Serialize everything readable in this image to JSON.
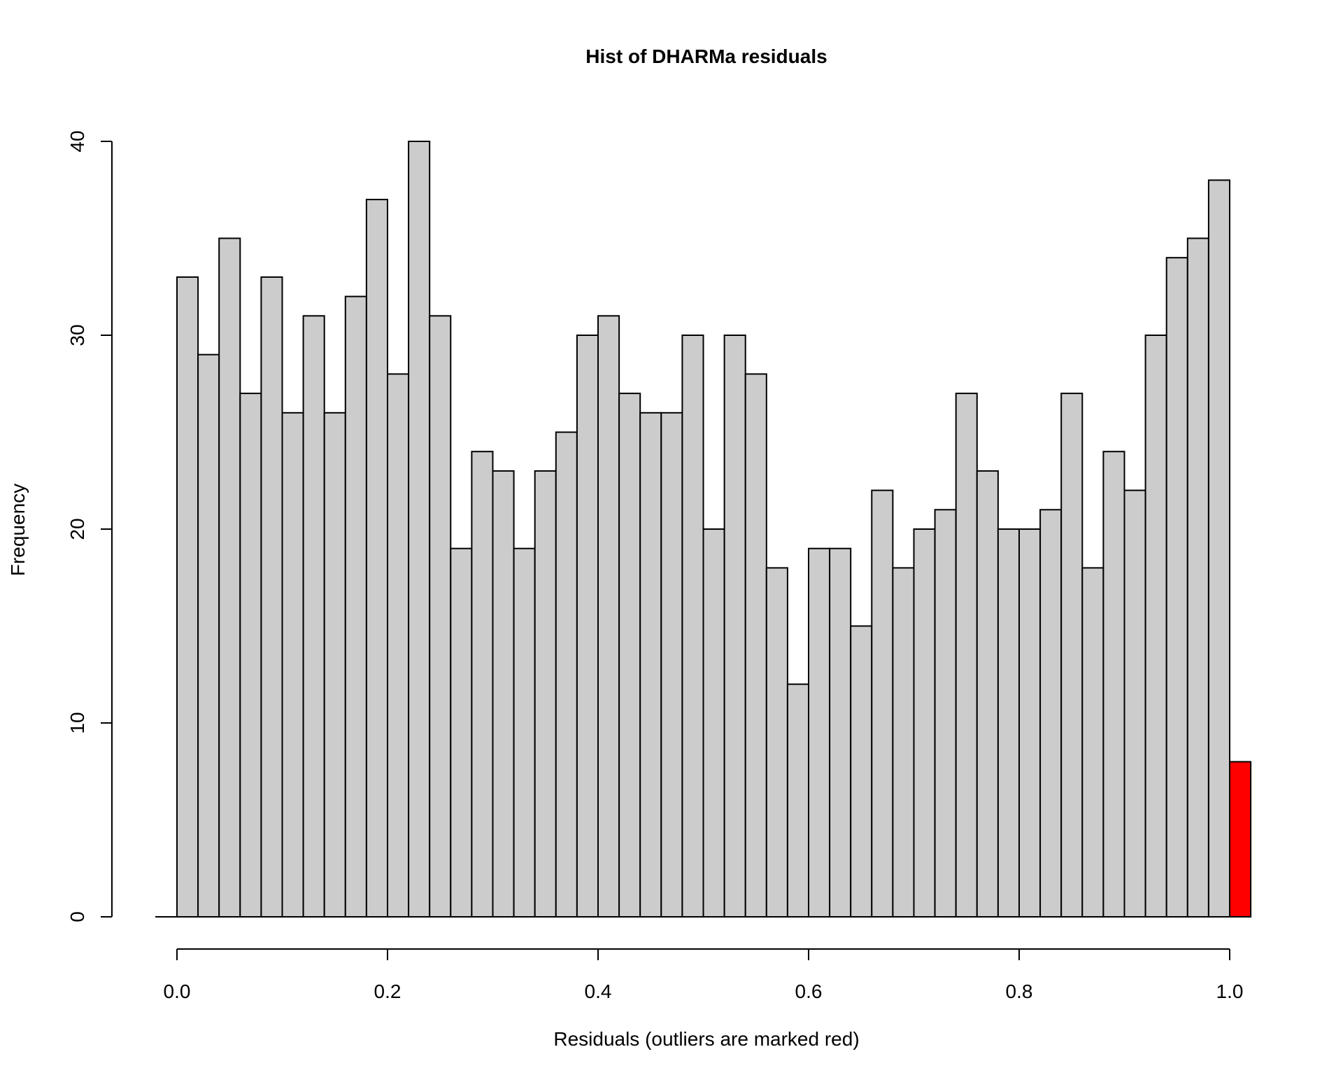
{
  "chart_data": {
    "type": "bar",
    "title": "Hist of DHARMa residuals",
    "xlabel": "Residuals (outliers are marked red)",
    "ylabel": "Frequency",
    "xlim": [
      0,
      1.02
    ],
    "ylim": [
      0,
      40
    ],
    "x_ticks": [
      "0.0",
      "0.2",
      "0.4",
      "0.6",
      "0.8",
      "1.0"
    ],
    "y_ticks": [
      "0",
      "10",
      "20",
      "30",
      "40"
    ],
    "bin_width": 0.02,
    "bin_starts": [
      0.0,
      0.02,
      0.04,
      0.06,
      0.08,
      0.1,
      0.12,
      0.14,
      0.16,
      0.18,
      0.2,
      0.22,
      0.24,
      0.26,
      0.28,
      0.3,
      0.32,
      0.34,
      0.36,
      0.38,
      0.4,
      0.42,
      0.44,
      0.46,
      0.48,
      0.5,
      0.52,
      0.54,
      0.56,
      0.58,
      0.6,
      0.62,
      0.64,
      0.66,
      0.68,
      0.7,
      0.72,
      0.74,
      0.76,
      0.78,
      0.8,
      0.82,
      0.84,
      0.86,
      0.88,
      0.9,
      0.92,
      0.94,
      0.96,
      0.98,
      1.0
    ],
    "values": [
      33,
      29,
      35,
      27,
      33,
      26,
      31,
      26,
      32,
      37,
      28,
      40,
      31,
      19,
      24,
      23,
      19,
      23,
      25,
      30,
      31,
      27,
      26,
      26,
      30,
      20,
      30,
      28,
      18,
      12,
      19,
      19,
      15,
      22,
      18,
      20,
      21,
      27,
      23,
      20,
      20,
      21,
      27,
      18,
      24,
      22,
      30,
      34,
      35,
      38,
      8
    ],
    "bar_color": "#cccccc",
    "outlier_color": "#ff0000",
    "outlier_bins": [
      50
    ],
    "grid": false
  }
}
